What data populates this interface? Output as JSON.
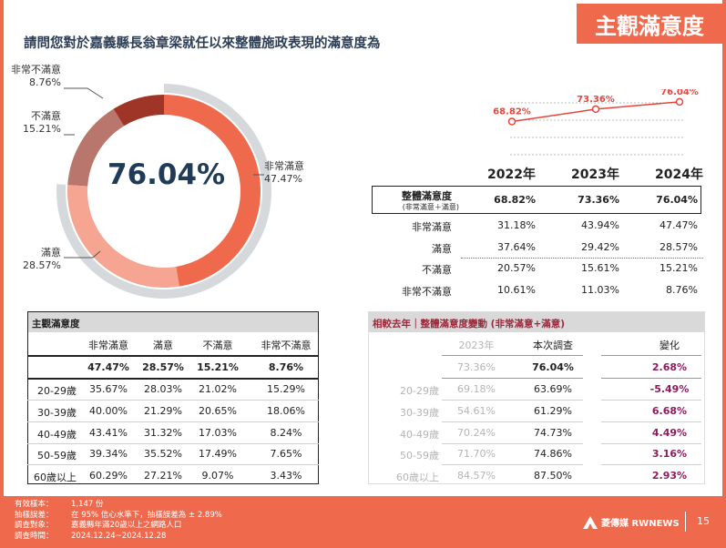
{
  "badge": "主觀滿意度",
  "question": "請問您對於嘉義縣長翁章梁就任以來整體施政表現的滿意度為",
  "chart_data": [
    {
      "type": "pie",
      "center_label": "76.04%",
      "slices": [
        {
          "name": "非常滿意",
          "value": 47.47,
          "label": "47.47%",
          "color": "#ef6a4c"
        },
        {
          "name": "滿意",
          "value": 28.57,
          "label": "28.57%",
          "color": "#f5a591"
        },
        {
          "name": "不滿意",
          "value": 15.21,
          "label": "15.21%",
          "color": "#b8766c"
        },
        {
          "name": "非常不滿意",
          "value": 8.76,
          "label": "8.76%",
          "color": "#9e3526"
        }
      ],
      "outer_ring_value": 76.04
    },
    {
      "type": "line",
      "x": [
        "2022年",
        "2023年",
        "2024年"
      ],
      "series": [
        {
          "name": "整體滿意度",
          "values": [
            68.82,
            73.36,
            76.04
          ],
          "labels": [
            "68.82%",
            "73.36%",
            "76.04%"
          ],
          "color": "#e8443a"
        }
      ]
    }
  ],
  "trend_table": {
    "years": [
      "2022年",
      "2023年",
      "2024年"
    ],
    "overall_label": "整體滿意度",
    "overall_sub": "(非常滿意＋滿意)",
    "overall": [
      "68.82%",
      "73.36%",
      "76.04%"
    ],
    "rows": [
      {
        "label": "非常滿意",
        "values": [
          "31.18%",
          "43.94%",
          "47.47%"
        ]
      },
      {
        "label": "滿意",
        "values": [
          "37.64%",
          "29.42%",
          "28.57%"
        ]
      },
      {
        "label": "不滿意",
        "values": [
          "20.57%",
          "15.61%",
          "15.21%"
        ]
      },
      {
        "label": "非常不滿意",
        "values": [
          "10.61%",
          "11.03%",
          "8.76%"
        ]
      }
    ]
  },
  "age_table": {
    "title": "主觀滿意度",
    "columns": [
      "非常滿意",
      "滿意",
      "不滿意",
      "非常不滿意"
    ],
    "total": [
      "47.47%",
      "28.57%",
      "15.21%",
      "8.76%"
    ],
    "rows": [
      {
        "label": "20-29歲",
        "values": [
          "35.67%",
          "28.03%",
          "21.02%",
          "15.29%"
        ]
      },
      {
        "label": "30-39歲",
        "values": [
          "40.00%",
          "21.29%",
          "20.65%",
          "18.06%"
        ]
      },
      {
        "label": "40-49歲",
        "values": [
          "43.41%",
          "31.32%",
          "17.03%",
          "8.24%"
        ]
      },
      {
        "label": "50-59歲",
        "values": [
          "39.34%",
          "35.52%",
          "17.49%",
          "7.65%"
        ]
      },
      {
        "label": "60歲以上",
        "values": [
          "60.29%",
          "27.21%",
          "9.07%",
          "3.43%"
        ]
      }
    ]
  },
  "change_table": {
    "title": "相較去年｜整體滿意度變動 (非常滿意+滿意)",
    "columns": [
      "2023年",
      "本次調查",
      "變化"
    ],
    "total": [
      "73.36%",
      "76.04%",
      "2.68%"
    ],
    "rows": [
      {
        "label": "20-29歲",
        "values": [
          "69.18%",
          "63.69%",
          "-5.49%"
        ]
      },
      {
        "label": "30-39歲",
        "values": [
          "54.61%",
          "61.29%",
          "6.68%"
        ]
      },
      {
        "label": "40-49歲",
        "values": [
          "70.24%",
          "74.73%",
          "4.49%"
        ]
      },
      {
        "label": "50-59歲",
        "values": [
          "71.70%",
          "74.86%",
          "3.16%"
        ]
      },
      {
        "label": "60歲以上",
        "values": [
          "84.57%",
          "87.50%",
          "2.93%"
        ]
      }
    ]
  },
  "footer": [
    {
      "k": "有效樣本：",
      "v": "1,147 份"
    },
    {
      "k": "抽樣誤差：",
      "v": "在 95% 信心水準下，抽樣誤差為 ± 2.89%"
    },
    {
      "k": "調查對象：",
      "v": "嘉義縣年滿20歲以上之網路人口"
    },
    {
      "k": "調查時間：",
      "v": "2024.12.24~2024.12.28"
    }
  ],
  "brand": "菱傳媒 RWNEWS",
  "page_number": "15"
}
